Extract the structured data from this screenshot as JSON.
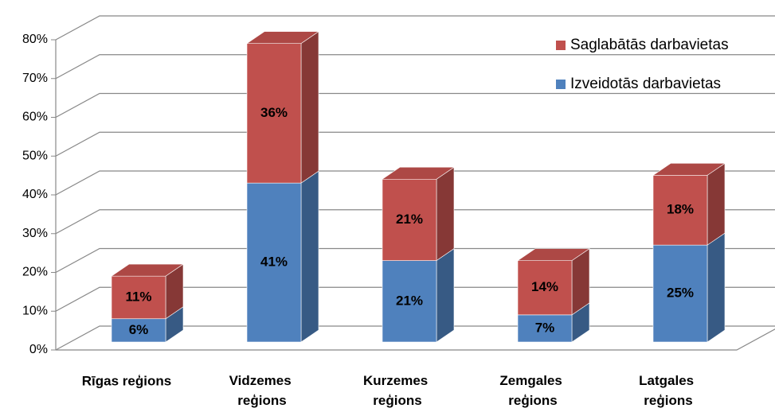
{
  "chart_data": {
    "type": "bar3d_stacked",
    "categories": [
      "Rīgas reģions",
      "Vidzemes reģions",
      "Kurzemes reģions",
      "Zemgales reģions",
      "Latgales reģions"
    ],
    "series": [
      {
        "name": "Izveidotās darbavietas",
        "color": "#4f81bd",
        "values": [
          6,
          41,
          21,
          7,
          25
        ],
        "value_labels": [
          "6%",
          "41%",
          "21%",
          "7%",
          "25%"
        ]
      },
      {
        "name": "Saglabātās darbavietas",
        "color": "#c0504d",
        "values": [
          11,
          36,
          21,
          14,
          18
        ],
        "value_labels": [
          "11%",
          "36%",
          "21%",
          "14%",
          "18%"
        ]
      }
    ],
    "ylim": [
      0,
      80
    ],
    "yticks": [
      {
        "value": 0,
        "label": "0%"
      },
      {
        "value": 10,
        "label": "10%"
      },
      {
        "value": 20,
        "label": "20%"
      },
      {
        "value": 30,
        "label": "30%"
      },
      {
        "value": 40,
        "label": "40%"
      },
      {
        "value": 50,
        "label": "50%"
      },
      {
        "value": 60,
        "label": "60%"
      },
      {
        "value": 70,
        "label": "70%"
      },
      {
        "value": 80,
        "label": "80%"
      }
    ],
    "grid": true,
    "legend": "top-right"
  }
}
